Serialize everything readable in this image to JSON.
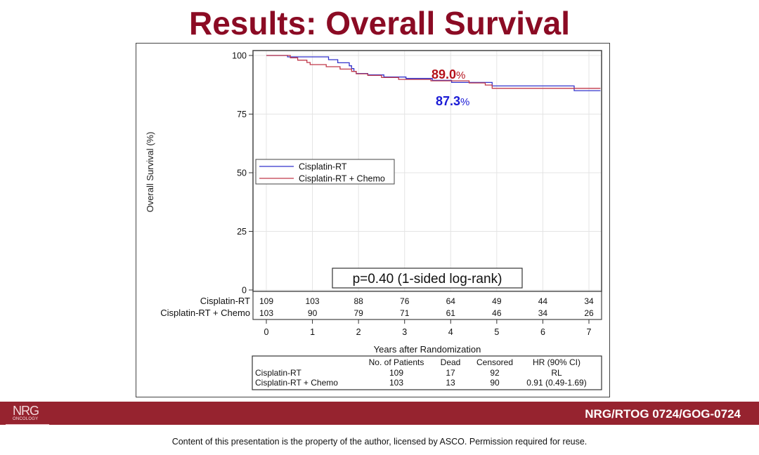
{
  "slide": {
    "title": "Results: Overall Survival",
    "footer": {
      "logo_main": "NRG",
      "logo_sub": "ONCOLOGY",
      "study_id": "NRG/RTOG 0724/GOG-0724",
      "colors": {
        "bar": "#96232f",
        "title": "#8b0b24"
      }
    },
    "copyright": "Content of this presentation is the property of the author, licensed by ASCO. Permission required for reuse."
  },
  "chart_data": {
    "type": "line",
    "subtype": "kaplan-meier-step",
    "title": "",
    "xlabel": "Years after Randomization",
    "ylabel": "Overall Survival (%)",
    "xlim": [
      0,
      7
    ],
    "ylim": [
      0,
      100
    ],
    "x_ticks": [
      0,
      1,
      2,
      3,
      4,
      5,
      6,
      7
    ],
    "y_ticks": [
      0,
      25,
      50,
      75,
      100
    ],
    "grid": true,
    "legend_position": "center-left",
    "series": [
      {
        "name": "Cisplatin-RT",
        "color": "#3333cc",
        "points": [
          [
            0,
            100
          ],
          [
            0.46,
            100
          ],
          [
            0.46,
            99.4
          ],
          [
            1.35,
            99.4
          ],
          [
            1.35,
            98.2
          ],
          [
            1.55,
            98.2
          ],
          [
            1.55,
            96.9
          ],
          [
            1.8,
            96.9
          ],
          [
            1.8,
            95.6
          ],
          [
            1.85,
            95.6
          ],
          [
            1.85,
            94.4
          ],
          [
            1.9,
            94.4
          ],
          [
            1.9,
            93.2
          ],
          [
            1.95,
            93.2
          ],
          [
            1.95,
            92.3
          ],
          [
            2.2,
            92.3
          ],
          [
            2.2,
            91.7
          ],
          [
            2.55,
            91.7
          ],
          [
            2.55,
            90.8
          ],
          [
            3.03,
            90.8
          ],
          [
            3.03,
            90.2
          ],
          [
            3.6,
            90.2
          ],
          [
            3.6,
            89.4
          ],
          [
            4.02,
            89.4
          ],
          [
            4.02,
            88.5
          ],
          [
            4.9,
            88.5
          ],
          [
            4.9,
            87.0
          ],
          [
            6.68,
            87.0
          ],
          [
            6.68,
            85.0
          ],
          [
            7.25,
            85.0
          ]
        ]
      },
      {
        "name": "Cisplatin-RT + Chemo",
        "color": "#c0394a",
        "points": [
          [
            0,
            100
          ],
          [
            0.52,
            100
          ],
          [
            0.52,
            99.0
          ],
          [
            0.68,
            99.0
          ],
          [
            0.68,
            98.0
          ],
          [
            0.88,
            98.0
          ],
          [
            0.88,
            97.0
          ],
          [
            0.95,
            97.0
          ],
          [
            0.95,
            96.1
          ],
          [
            1.3,
            96.1
          ],
          [
            1.3,
            95.2
          ],
          [
            1.6,
            95.2
          ],
          [
            1.6,
            94.2
          ],
          [
            1.85,
            94.2
          ],
          [
            1.85,
            93.2
          ],
          [
            1.95,
            93.2
          ],
          [
            1.95,
            92.2
          ],
          [
            2.2,
            92.2
          ],
          [
            2.2,
            91.5
          ],
          [
            2.5,
            91.5
          ],
          [
            2.5,
            90.6
          ],
          [
            2.87,
            90.6
          ],
          [
            2.87,
            89.8
          ],
          [
            3.57,
            89.8
          ],
          [
            3.57,
            89.2
          ],
          [
            4.4,
            89.2
          ],
          [
            4.4,
            88.3
          ],
          [
            4.75,
            88.3
          ],
          [
            4.75,
            87.4
          ],
          [
            4.9,
            87.4
          ],
          [
            4.9,
            86.0
          ],
          [
            7.25,
            86.0
          ]
        ]
      }
    ],
    "annotations": [
      {
        "text_value": "89.0",
        "text_suffix": "%",
        "color": "#b5121b",
        "series": "Cisplatin-RT + Chemo"
      },
      {
        "text_value": "87.3",
        "text_suffix": "%",
        "color": "#1a1ad6",
        "series": "Cisplatin-RT"
      },
      {
        "text": "p=0.40 (1-sided log-rank)"
      }
    ],
    "legend": [
      "Cisplatin-RT",
      "Cisplatin-RT + Chemo"
    ],
    "at_risk": {
      "rows": [
        {
          "label": "Cisplatin-RT",
          "values": [
            109,
            103,
            88,
            76,
            64,
            49,
            44,
            34
          ]
        },
        {
          "label": "Cisplatin-RT + Chemo",
          "values": [
            103,
            90,
            79,
            71,
            61,
            46,
            34,
            26
          ]
        }
      ]
    },
    "summary_table": {
      "headers": [
        "",
        "No. of Patients",
        "Dead",
        "Censored",
        "HR (90% CI)"
      ],
      "rows": [
        [
          "Cisplatin-RT",
          "109",
          "17",
          "92",
          "RL"
        ],
        [
          "Cisplatin-RT + Chemo",
          "103",
          "13",
          "90",
          "0.91 (0.49-1.69)"
        ]
      ]
    }
  }
}
